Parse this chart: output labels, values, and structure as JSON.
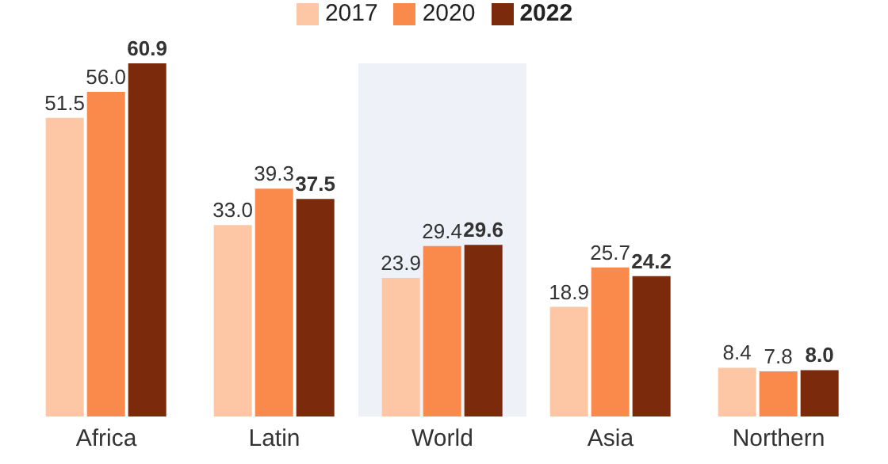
{
  "chart_data": {
    "type": "bar",
    "categories": [
      "Africa",
      "Latin",
      "World",
      "Asia",
      "Northern"
    ],
    "series": [
      {
        "name": "2017",
        "color": "#fdc7a5",
        "values": [
          51.5,
          33.0,
          23.9,
          18.9,
          8.4
        ],
        "value_labels": [
          "51.5",
          "33.0",
          "23.9",
          "18.9",
          "8.4"
        ]
      },
      {
        "name": "2020",
        "color": "#fa8a4b",
        "values": [
          56.0,
          39.3,
          29.4,
          25.7,
          7.8
        ],
        "value_labels": [
          "56.0",
          "39.3",
          "29.4",
          "25.7",
          "7.8"
        ]
      },
      {
        "name": "2022",
        "color": "#7b2a0b",
        "values": [
          60.9,
          37.5,
          29.6,
          24.2,
          8.0
        ],
        "value_labels": [
          "60.9",
          "37.5",
          "29.6",
          "24.2",
          "8.0"
        ]
      }
    ],
    "legend": "top",
    "bands": [
      {
        "axis": "x",
        "from": "World",
        "to": "World",
        "color": "#eef2f8"
      }
    ]
  }
}
